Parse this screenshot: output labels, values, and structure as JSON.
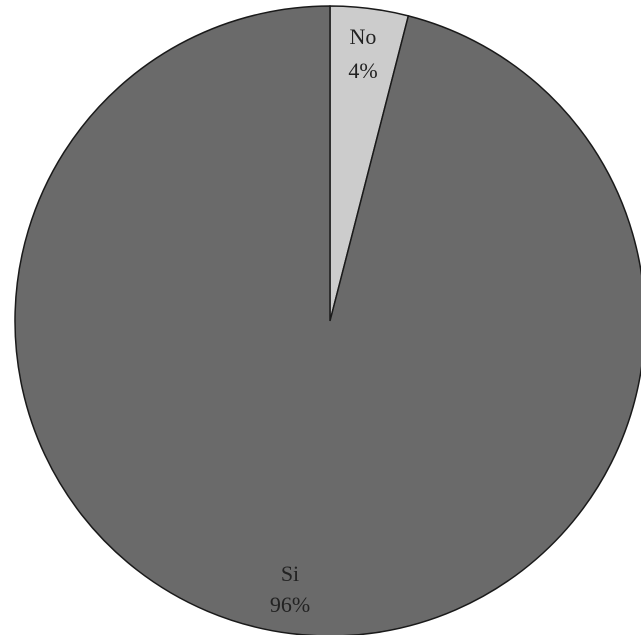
{
  "chart_data": {
    "type": "pie",
    "title": "",
    "start": "top",
    "direction": "clockwise",
    "slices": [
      {
        "label": "No",
        "value": 4,
        "value_label": "4%",
        "color": "#cccccc"
      },
      {
        "label": "Si",
        "value": 96,
        "value_label": "96%",
        "color": "#6a6a6a"
      }
    ],
    "stroke_color": "#1a1a1a",
    "legend": "none"
  }
}
